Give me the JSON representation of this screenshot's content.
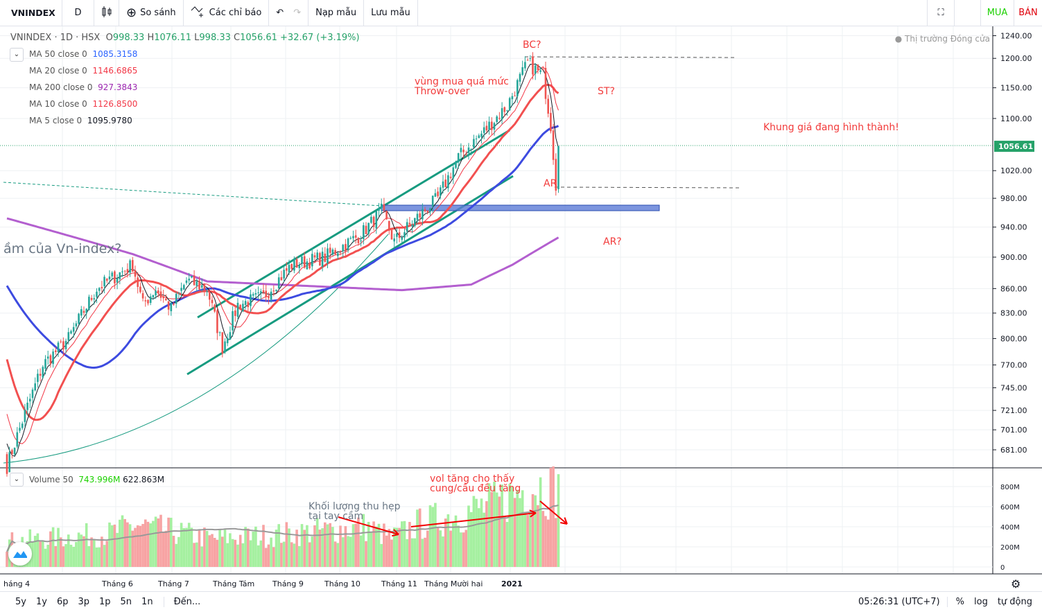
{
  "toolbar": {
    "symbol": "VNINDEX",
    "interval": "D",
    "compare": "So sánh",
    "indicators": "Các chỉ báo",
    "load_template": "Nạp mẫu",
    "save_template": "Lưu mẫu",
    "buy": "MUA",
    "sell": "BÁN"
  },
  "header": {
    "title": "VNINDEX · 1D · HSX",
    "o_label": "O",
    "o": "998.33",
    "h_label": "H",
    "h": "1076.11",
    "l_label": "L",
    "l": "998.33",
    "c_label": "C",
    "c": "1056.61",
    "change": "+32.67 (+3.19%)",
    "market_status": "Thị trường Đóng cửa"
  },
  "legend": [
    {
      "label": "MA 50 close 0",
      "value": "1085.3158",
      "color": "#2962ff"
    },
    {
      "label": "MA 20 close 0",
      "value": "1146.6865",
      "color": "#f23645"
    },
    {
      "label": "MA 200 close 0",
      "value": "927.3843",
      "color": "#9c27b0"
    },
    {
      "label": "MA 10 close 0",
      "value": "1126.8500",
      "color": "#f23645"
    },
    {
      "label": "MA 5 close 0",
      "value": "1095.9780",
      "color": "#131722"
    }
  ],
  "volume_legend": {
    "label": "Volume 50",
    "value": "743.996M",
    "ma": "622.863M"
  },
  "annotations": {
    "bc": "BC?",
    "overbought": "vùng mua quá mức",
    "throwover": "Throw-over",
    "st": "ST?",
    "forming": "Khung giá đang hình thành!",
    "ar": "AR",
    "ar2": "AR?",
    "question": "ầm của Vn-index?",
    "vol_narrow1": "Khối lượng thu hẹp",
    "vol_narrow2": "tại tay cầm",
    "vol_up1": "vol tăng cho thấy",
    "vol_up2": "cung/cầu đều tăng"
  },
  "bottom": {
    "ranges": [
      "5y",
      "1y",
      "6p",
      "3p",
      "1p",
      "5n",
      "1n"
    ],
    "goto": "Đến...",
    "time": "05:26:31 (UTC+7)",
    "percent": "%",
    "log": "log",
    "auto": "tự động"
  },
  "chart_data": {
    "type": "candlestick",
    "price_ticks": [
      "1240.00",
      "1200.00",
      "1150.00",
      "1100.00",
      "1020.00",
      "980.00",
      "940.00",
      "900.00",
      "860.00",
      "830.00",
      "800.00",
      "770.00",
      "745.00",
      "721.00",
      "701.00",
      "681.00"
    ],
    "last_price": "1056.61",
    "volume_ticks": [
      "800M",
      "600M",
      "400M",
      "200M",
      "0"
    ],
    "x_ticks": [
      "háng 4",
      "Tháng 6",
      "Tháng 7",
      "Tháng Tám",
      "Tháng 9",
      "Tháng 10",
      "Tháng 11",
      "Tháng Mười hai",
      "2021"
    ],
    "close_waypoints": [
      [
        -60,
        960
      ],
      [
        -20,
        900
      ],
      [
        0,
        665
      ],
      [
        14,
        770
      ],
      [
        24,
        800
      ],
      [
        35,
        860
      ],
      [
        49,
        890
      ],
      [
        53,
        840
      ],
      [
        58,
        860
      ],
      [
        64,
        835
      ],
      [
        70,
        870
      ],
      [
        78,
        860
      ],
      [
        84,
        790
      ],
      [
        90,
        840
      ],
      [
        100,
        850
      ],
      [
        111,
        890
      ],
      [
        124,
        900
      ],
      [
        138,
        930
      ],
      [
        146,
        962
      ],
      [
        151,
        920
      ],
      [
        159,
        950
      ],
      [
        168,
        980
      ],
      [
        176,
        1040
      ],
      [
        186,
        1080
      ],
      [
        195,
        1120
      ],
      [
        203,
        1192
      ],
      [
        209,
        1170
      ],
      [
        212,
        1090
      ],
      [
        214,
        1000
      ],
      [
        215,
        1056.61
      ]
    ],
    "ma200_waypoints": [
      [
        0,
        952
      ],
      [
        49,
        904
      ],
      [
        78,
        869
      ],
      [
        119,
        863
      ],
      [
        154,
        858
      ],
      [
        181,
        865
      ],
      [
        197,
        890
      ],
      [
        215,
        926
      ]
    ],
    "volume_waypoints": [
      [
        0,
        250
      ],
      [
        40,
        330
      ],
      [
        50,
        420
      ],
      [
        80,
        280
      ],
      [
        110,
        330
      ],
      [
        140,
        400
      ],
      [
        150,
        290
      ],
      [
        160,
        420
      ],
      [
        190,
        620
      ],
      [
        205,
        820
      ],
      [
        215,
        760
      ]
    ]
  }
}
